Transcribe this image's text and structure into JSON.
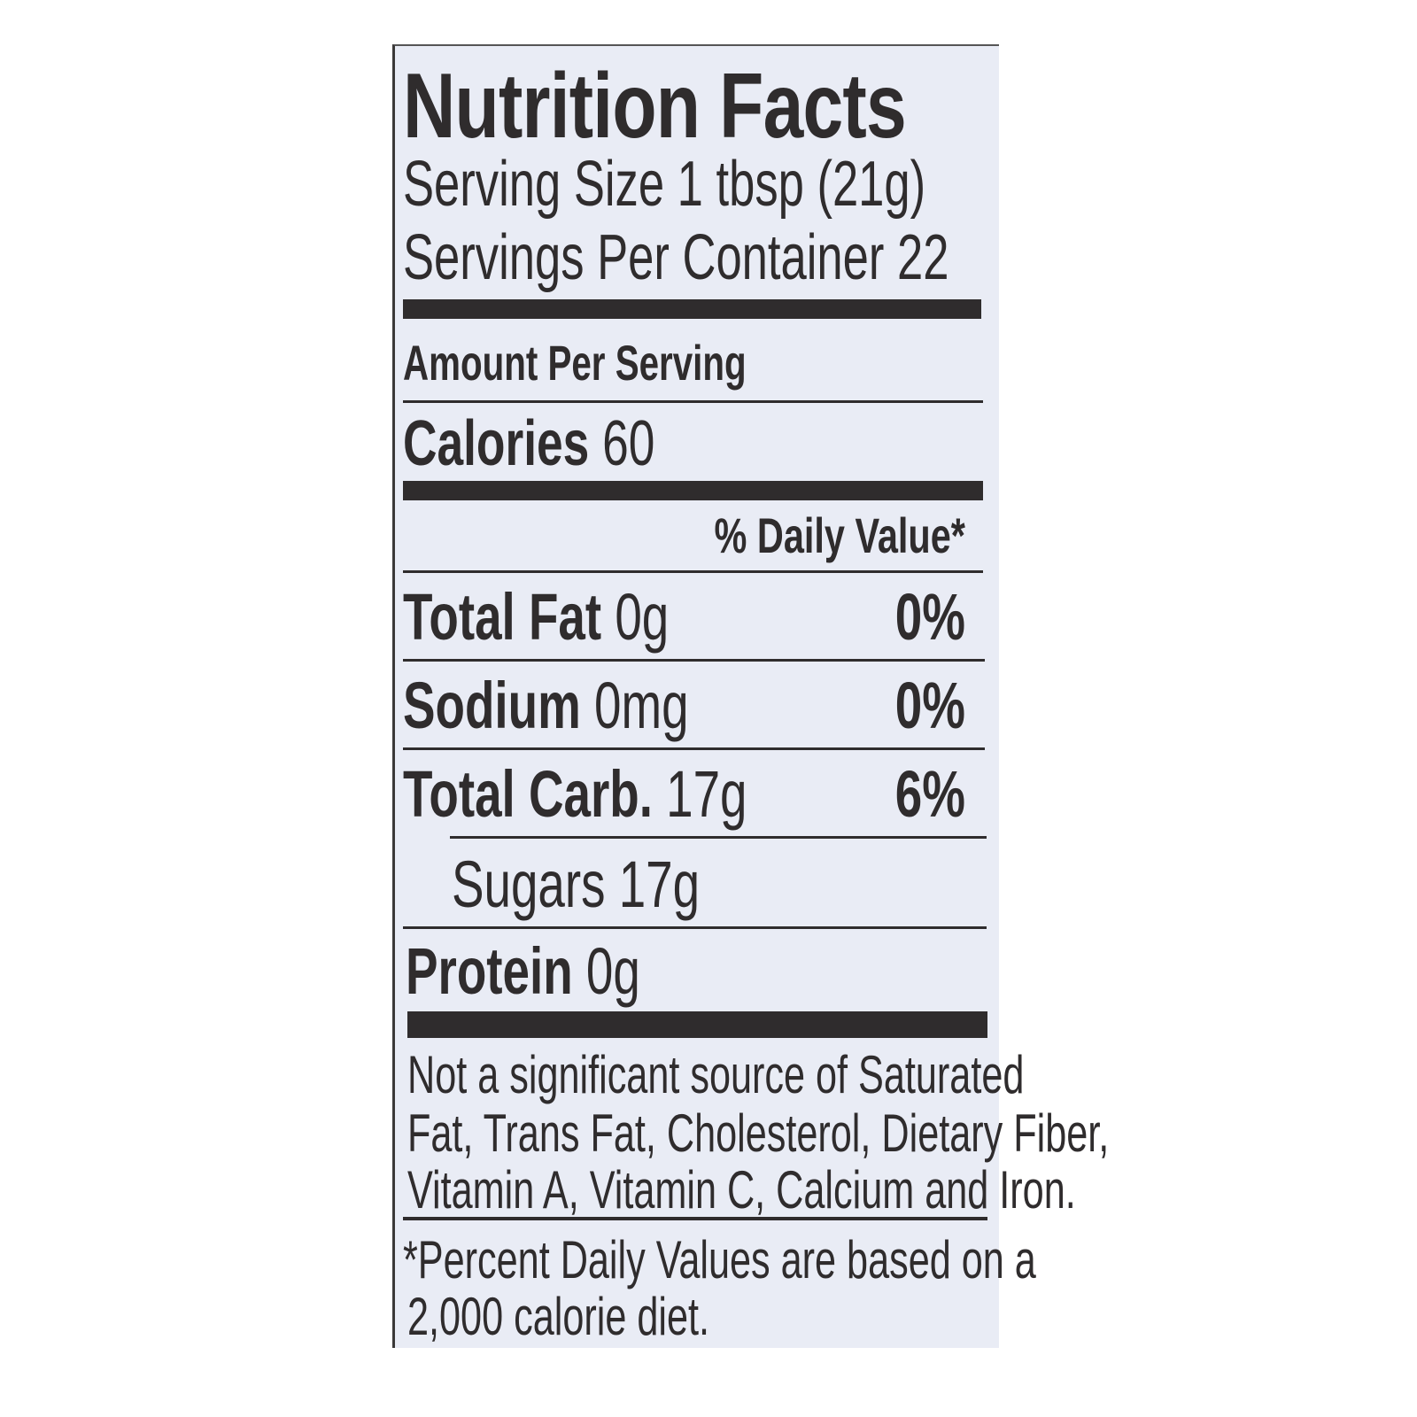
{
  "title": "Nutrition Facts",
  "serving_size": "Serving Size 1 tbsp (21g)",
  "servings_per_container": "Servings Per Container 22",
  "amount_per_serving": "Amount Per Serving",
  "calories": {
    "label": "Calories",
    "value": "60"
  },
  "daily_value_header": "% Daily Value*",
  "nutrients": [
    {
      "label": "Total Fat",
      "amount": "0g",
      "dv": "0%"
    },
    {
      "label": "Sodium",
      "amount": "0mg",
      "dv": "0%"
    },
    {
      "label": "Total Carb.",
      "amount": "17g",
      "dv": "6%"
    },
    {
      "label": "Sugars",
      "amount": "17g",
      "dv": ""
    },
    {
      "label": "Protein",
      "amount": "0g",
      "dv": ""
    }
  ],
  "footnote_lines": [
    "Not a significant source of Saturated",
    "Fat, Trans Fat, Cholesterol, Dietary Fiber,",
    "Vitamin A, Vitamin C, Calcium and Iron."
  ],
  "dv_note_lines": [
    "*Percent Daily Values are based on a",
    "2,000 calorie diet."
  ],
  "colors": {
    "ink": "#2f2c2d",
    "label_bg": "#e9ecf5"
  }
}
